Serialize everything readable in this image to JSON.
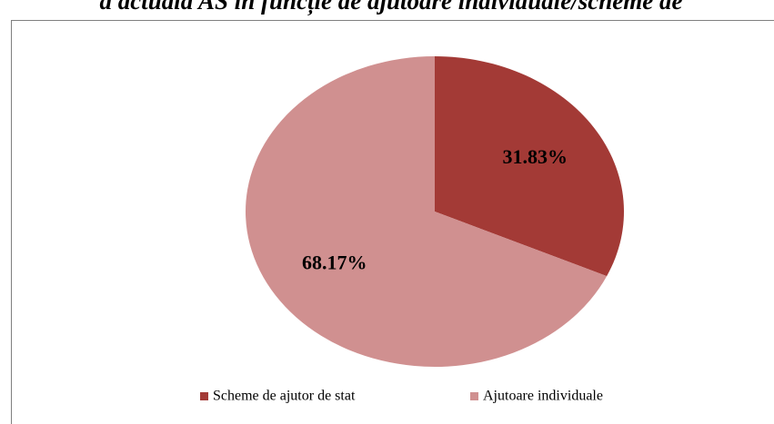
{
  "chart_data": {
    "type": "pie",
    "title": "a actuală AS în funcție de ajutoare individuale/scheme de",
    "categories": [
      "Scheme de ajutor de stat",
      "Ajutoare individuale"
    ],
    "values": [
      31.83,
      68.17
    ],
    "value_labels": [
      "31.83%",
      "68.17%"
    ],
    "colors": [
      "#a33a36",
      "#d09090"
    ],
    "legend": "bottom"
  }
}
